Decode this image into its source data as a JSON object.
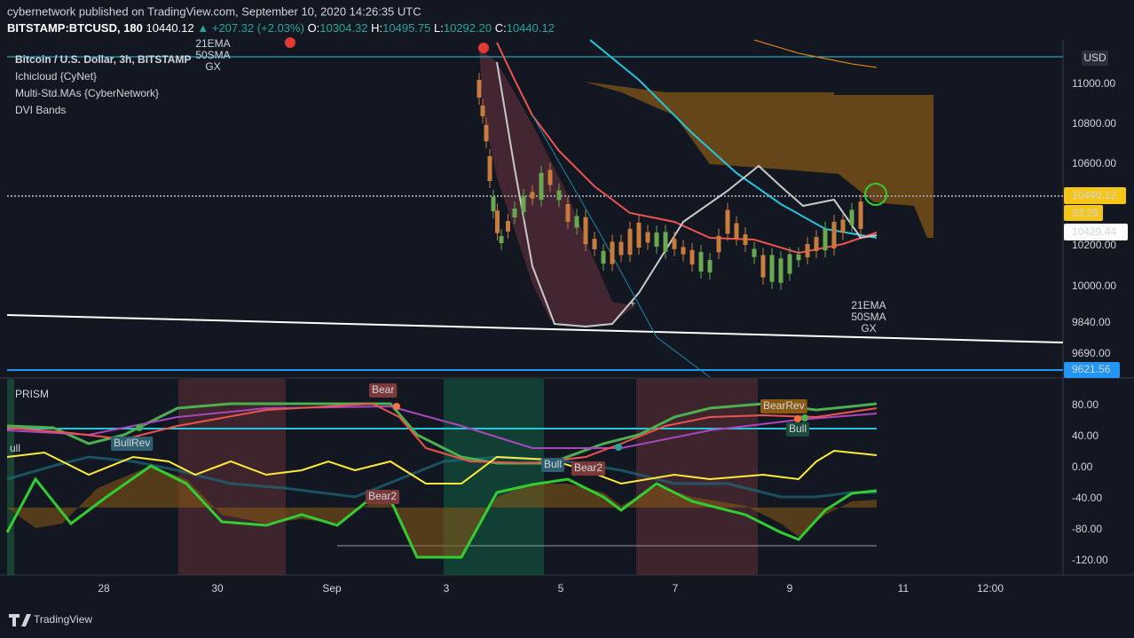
{
  "header": {
    "title": "cybernetwork published on TradingView.com, September 10, 2020 14:26:35 UTC",
    "symbol": "BITSTAMP:BTCUSD, 180",
    "last": "10440.12",
    "change": "▲ +207.32 (+2.03%)",
    "ohlc": [
      {
        "label": "O:",
        "value": "10304.32"
      },
      {
        "label": "H:",
        "value": "10495.75"
      },
      {
        "label": "L:",
        "value": "10292.20"
      },
      {
        "label": "C:",
        "value": "10440.12"
      }
    ]
  },
  "legend": [
    "Bitcoin / U.S. Dollar, 3h, BITSTAMP",
    "Ichicloud {CyNet}",
    "Multi-Std.MAs {CyberNetwork}",
    "DVI Bands"
  ],
  "annotations": [
    [
      "21EMA",
      "50SMA",
      "GX"
    ],
    [
      "21EMA",
      "50SMA",
      "GX"
    ]
  ],
  "price_axis": {
    "currency": "USD",
    "ticks": [
      "11000.00",
      "10800.00",
      "10600.00",
      "10200.00",
      "10000.00",
      "9840.00",
      "9690.00"
    ],
    "last_price": "10440.12",
    "countdown": "33:29",
    "crosshair": "10429.44",
    "line_level": "9621.56"
  },
  "oscillator": {
    "title": "PRISM",
    "ticks": [
      "80.00",
      "40.00",
      "0.00",
      "-40.00",
      "-80.00",
      "-120.00"
    ],
    "signals": [
      "ull",
      "BullRev",
      "Bear",
      "Bear2",
      "Bull",
      "Bear2",
      "BearRev",
      "Bull"
    ]
  },
  "time_axis": [
    "28",
    "30",
    "Sep",
    "3",
    "5",
    "7",
    "9",
    "11",
    "12:00"
  ],
  "footer": "TradingView"
}
